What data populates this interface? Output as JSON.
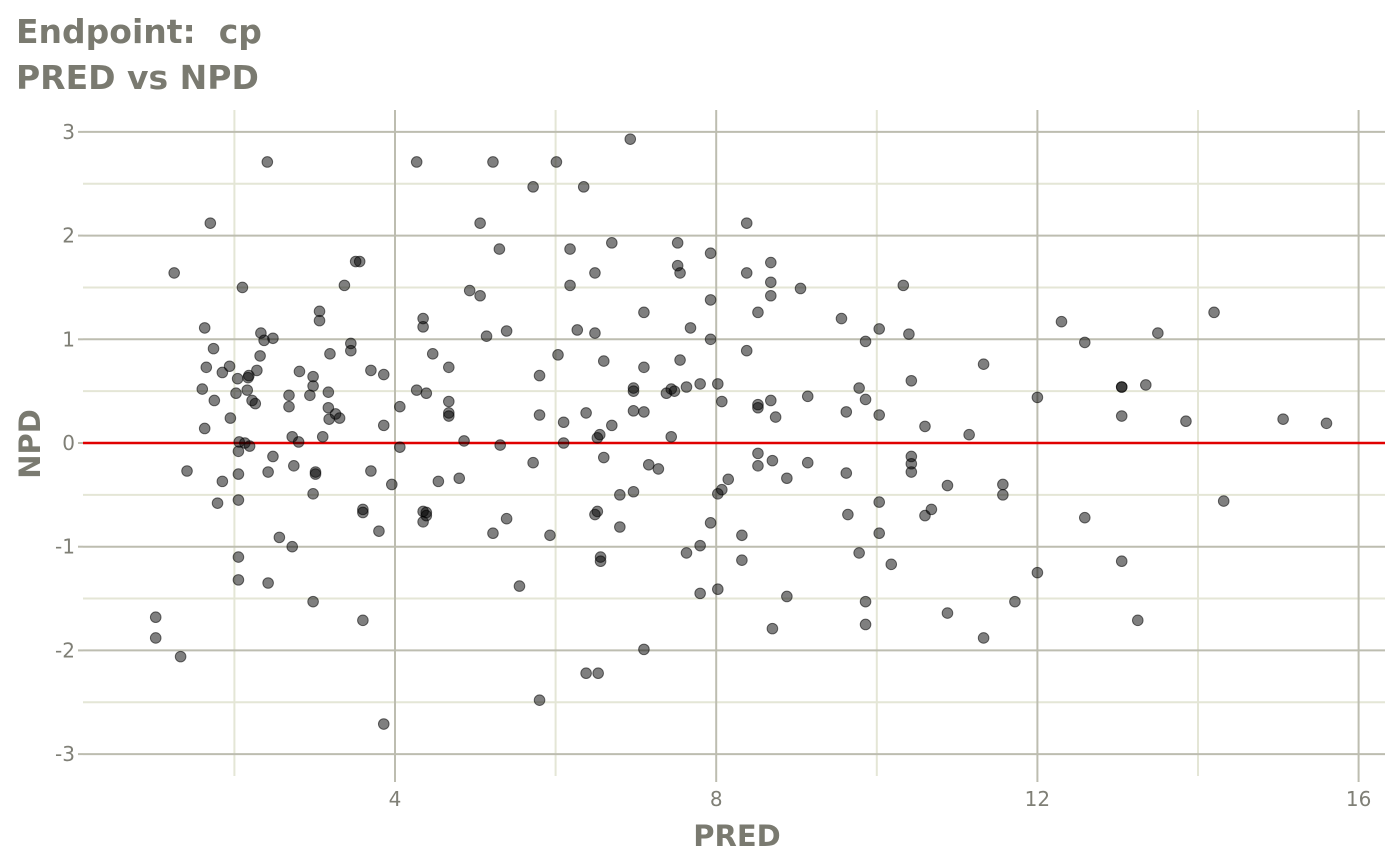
{
  "title_line1": "Endpoint:  cp",
  "title_line2": "PRED vs NPD",
  "chart_data": {
    "type": "scatter",
    "xlabel": "PRED",
    "ylabel": "NPD",
    "xlim": [
      0.4,
      16.3
    ],
    "ylim": [
      -3.3,
      3.3
    ],
    "xticks": [
      4,
      8,
      12,
      16
    ],
    "xtick_labels": [
      "4",
      "8",
      "12",
      "16"
    ],
    "yticks": [
      -3,
      -2,
      -1,
      0,
      1,
      2,
      3
    ],
    "ytick_labels": [
      "-3",
      "-2",
      "-1",
      "0",
      "1",
      "2",
      "3"
    ],
    "grid": true,
    "reference_line": 0,
    "colors": {
      "point": "#000000",
      "reference_line": "#e00000",
      "major_grid": "#bdbdb0",
      "minor_grid": "#e4e6d6",
      "text": "#7a7a70"
    },
    "points": [
      [
        1.25,
        1.64
      ],
      [
        1.02,
        -1.68
      ],
      [
        1.02,
        -1.88
      ],
      [
        1.33,
        -2.06
      ],
      [
        1.41,
        -0.27
      ],
      [
        1.6,
        0.52
      ],
      [
        1.63,
        1.11
      ],
      [
        1.63,
        0.14
      ],
      [
        1.65,
        0.73
      ],
      [
        1.7,
        2.12
      ],
      [
        1.74,
        0.91
      ],
      [
        1.75,
        0.41
      ],
      [
        1.79,
        -0.58
      ],
      [
        1.85,
        -0.37
      ],
      [
        1.85,
        0.68
      ],
      [
        1.94,
        0.74
      ],
      [
        1.95,
        0.24
      ],
      [
        2.02,
        0.48
      ],
      [
        2.04,
        0.62
      ],
      [
        2.05,
        -0.3
      ],
      [
        2.05,
        -1.1
      ],
      [
        2.05,
        -1.32
      ],
      [
        2.05,
        -0.55
      ],
      [
        2.05,
        -0.08
      ],
      [
        2.06,
        0.01
      ],
      [
        2.1,
        1.5
      ],
      [
        2.13,
        0.0
      ],
      [
        2.16,
        0.51
      ],
      [
        2.17,
        0.63
      ],
      [
        2.18,
        0.65
      ],
      [
        2.19,
        -0.03
      ],
      [
        2.22,
        0.41
      ],
      [
        2.26,
        0.38
      ],
      [
        2.28,
        0.7
      ],
      [
        2.32,
        0.84
      ],
      [
        2.33,
        1.06
      ],
      [
        2.37,
        0.99
      ],
      [
        2.41,
        2.71
      ],
      [
        2.42,
        -0.28
      ],
      [
        2.42,
        -1.35
      ],
      [
        2.48,
        1.01
      ],
      [
        2.48,
        -0.13
      ],
      [
        2.56,
        -0.91
      ],
      [
        2.68,
        0.46
      ],
      [
        2.68,
        0.35
      ],
      [
        2.72,
        0.06
      ],
      [
        2.72,
        -1.0
      ],
      [
        2.74,
        -0.22
      ],
      [
        2.8,
        0.01
      ],
      [
        2.81,
        0.69
      ],
      [
        2.94,
        0.46
      ],
      [
        2.98,
        0.55
      ],
      [
        2.98,
        0.64
      ],
      [
        2.98,
        -0.49
      ],
      [
        2.98,
        -1.53
      ],
      [
        3.01,
        -0.28
      ],
      [
        3.01,
        -0.3
      ],
      [
        3.06,
        1.27
      ],
      [
        3.06,
        1.18
      ],
      [
        3.1,
        0.06
      ],
      [
        3.17,
        0.49
      ],
      [
        3.17,
        0.34
      ],
      [
        3.18,
        0.23
      ],
      [
        3.19,
        0.86
      ],
      [
        3.26,
        0.28
      ],
      [
        3.31,
        0.24
      ],
      [
        3.37,
        1.52
      ],
      [
        3.45,
        0.89
      ],
      [
        3.45,
        0.96
      ],
      [
        3.51,
        1.75
      ],
      [
        3.56,
        1.75
      ],
      [
        3.6,
        -0.64
      ],
      [
        3.6,
        -0.67
      ],
      [
        3.6,
        -1.71
      ],
      [
        3.7,
        0.7
      ],
      [
        3.7,
        -0.27
      ],
      [
        3.8,
        -0.85
      ],
      [
        3.86,
        0.66
      ],
      [
        3.86,
        0.17
      ],
      [
        3.86,
        -2.71
      ],
      [
        3.96,
        -0.4
      ],
      [
        4.06,
        0.35
      ],
      [
        4.06,
        -0.04
      ],
      [
        4.27,
        2.71
      ],
      [
        4.27,
        0.51
      ],
      [
        4.35,
        1.12
      ],
      [
        4.35,
        1.2
      ],
      [
        4.35,
        -0.66
      ],
      [
        4.35,
        -0.76
      ],
      [
        4.39,
        -0.7
      ],
      [
        4.39,
        -0.67
      ],
      [
        4.39,
        0.48
      ],
      [
        4.47,
        0.86
      ],
      [
        4.54,
        -0.37
      ],
      [
        4.67,
        0.73
      ],
      [
        4.67,
        0.4
      ],
      [
        4.67,
        0.29
      ],
      [
        4.67,
        0.26
      ],
      [
        4.8,
        -0.34
      ],
      [
        4.86,
        0.02
      ],
      [
        4.93,
        1.47
      ],
      [
        5.06,
        1.42
      ],
      [
        5.06,
        2.12
      ],
      [
        5.14,
        1.03
      ],
      [
        5.22,
        2.71
      ],
      [
        5.22,
        -0.87
      ],
      [
        5.3,
        1.87
      ],
      [
        5.31,
        -0.02
      ],
      [
        5.39,
        1.08
      ],
      [
        5.39,
        -0.73
      ],
      [
        5.55,
        -1.38
      ],
      [
        5.72,
        2.47
      ],
      [
        5.72,
        -0.19
      ],
      [
        5.8,
        0.65
      ],
      [
        5.8,
        0.27
      ],
      [
        5.8,
        -2.48
      ],
      [
        5.93,
        -0.89
      ],
      [
        6.01,
        2.71
      ],
      [
        6.03,
        0.85
      ],
      [
        6.1,
        0.2
      ],
      [
        6.1,
        0.0
      ],
      [
        6.18,
        1.87
      ],
      [
        6.18,
        1.52
      ],
      [
        6.27,
        1.09
      ],
      [
        6.35,
        2.47
      ],
      [
        6.38,
        0.29
      ],
      [
        6.38,
        -2.22
      ],
      [
        6.49,
        1.64
      ],
      [
        6.49,
        1.06
      ],
      [
        6.49,
        -0.69
      ],
      [
        6.52,
        -0.66
      ],
      [
        6.52,
        0.05
      ],
      [
        6.53,
        -2.22
      ],
      [
        6.55,
        0.08
      ],
      [
        6.56,
        -1.14
      ],
      [
        6.56,
        -1.1
      ],
      [
        6.6,
        0.79
      ],
      [
        6.6,
        -0.14
      ],
      [
        6.7,
        1.93
      ],
      [
        6.7,
        0.17
      ],
      [
        6.8,
        -0.5
      ],
      [
        6.8,
        -0.81
      ],
      [
        6.93,
        2.93
      ],
      [
        6.97,
        0.53
      ],
      [
        6.97,
        0.5
      ],
      [
        6.97,
        0.31
      ],
      [
        6.97,
        -0.47
      ],
      [
        7.1,
        0.73
      ],
      [
        7.1,
        1.26
      ],
      [
        7.1,
        0.3
      ],
      [
        7.1,
        -1.99
      ],
      [
        7.16,
        -0.21
      ],
      [
        7.28,
        -0.25
      ],
      [
        7.38,
        0.48
      ],
      [
        7.44,
        0.52
      ],
      [
        7.44,
        0.06
      ],
      [
        7.48,
        0.5
      ],
      [
        7.52,
        1.93
      ],
      [
        7.52,
        1.71
      ],
      [
        7.55,
        1.64
      ],
      [
        7.55,
        0.8
      ],
      [
        7.63,
        0.54
      ],
      [
        7.63,
        -1.06
      ],
      [
        7.68,
        1.11
      ],
      [
        7.8,
        0.57
      ],
      [
        7.8,
        -0.99
      ],
      [
        7.8,
        -1.45
      ],
      [
        7.93,
        1.83
      ],
      [
        7.93,
        1.38
      ],
      [
        7.93,
        1.0
      ],
      [
        7.93,
        -0.77
      ],
      [
        8.02,
        0.57
      ],
      [
        8.02,
        -0.49
      ],
      [
        8.02,
        -1.41
      ],
      [
        8.07,
        -0.45
      ],
      [
        8.07,
        0.4
      ],
      [
        8.15,
        -0.35
      ],
      [
        8.32,
        -0.89
      ],
      [
        8.32,
        -1.13
      ],
      [
        8.38,
        2.12
      ],
      [
        8.38,
        1.64
      ],
      [
        8.38,
        0.89
      ],
      [
        8.52,
        1.26
      ],
      [
        8.52,
        0.37
      ],
      [
        8.52,
        0.34
      ],
      [
        8.52,
        -0.1
      ],
      [
        8.52,
        -0.22
      ],
      [
        8.68,
        1.74
      ],
      [
        8.68,
        1.55
      ],
      [
        8.68,
        1.42
      ],
      [
        8.68,
        0.41
      ],
      [
        8.7,
        -0.17
      ],
      [
        8.7,
        -1.79
      ],
      [
        8.74,
        0.25
      ],
      [
        8.88,
        -0.34
      ],
      [
        8.88,
        -1.48
      ],
      [
        9.05,
        1.49
      ],
      [
        9.14,
        0.45
      ],
      [
        9.14,
        -0.19
      ],
      [
        9.56,
        1.2
      ],
      [
        9.62,
        0.3
      ],
      [
        9.62,
        -0.29
      ],
      [
        9.64,
        -0.69
      ],
      [
        9.78,
        0.53
      ],
      [
        9.78,
        -1.06
      ],
      [
        9.86,
        0.98
      ],
      [
        9.86,
        0.42
      ],
      [
        9.86,
        -1.53
      ],
      [
        9.86,
        -1.75
      ],
      [
        10.03,
        0.27
      ],
      [
        10.03,
        -0.57
      ],
      [
        10.03,
        -0.87
      ],
      [
        10.03,
        1.1
      ],
      [
        10.18,
        -1.17
      ],
      [
        10.33,
        1.52
      ],
      [
        10.4,
        1.05
      ],
      [
        10.43,
        0.6
      ],
      [
        10.43,
        -0.13
      ],
      [
        10.43,
        -0.2
      ],
      [
        10.43,
        -0.28
      ],
      [
        10.6,
        0.16
      ],
      [
        10.6,
        -0.7
      ],
      [
        10.68,
        -0.64
      ],
      [
        10.88,
        -0.41
      ],
      [
        10.88,
        -1.64
      ],
      [
        11.15,
        0.08
      ],
      [
        11.33,
        0.76
      ],
      [
        11.33,
        -1.88
      ],
      [
        11.57,
        -0.4
      ],
      [
        11.57,
        -0.5
      ],
      [
        11.72,
        -1.53
      ],
      [
        12.0,
        0.44
      ],
      [
        12.0,
        -1.25
      ],
      [
        12.3,
        1.17
      ],
      [
        12.59,
        0.97
      ],
      [
        12.59,
        -0.72
      ],
      [
        13.05,
        0.54
      ],
      [
        13.05,
        0.54
      ],
      [
        13.05,
        0.26
      ],
      [
        13.05,
        -1.14
      ],
      [
        13.25,
        -1.71
      ],
      [
        13.35,
        0.56
      ],
      [
        13.5,
        1.06
      ],
      [
        13.85,
        0.21
      ],
      [
        14.2,
        1.26
      ],
      [
        14.32,
        -0.56
      ],
      [
        15.06,
        0.23
      ],
      [
        15.6,
        0.19
      ]
    ]
  }
}
